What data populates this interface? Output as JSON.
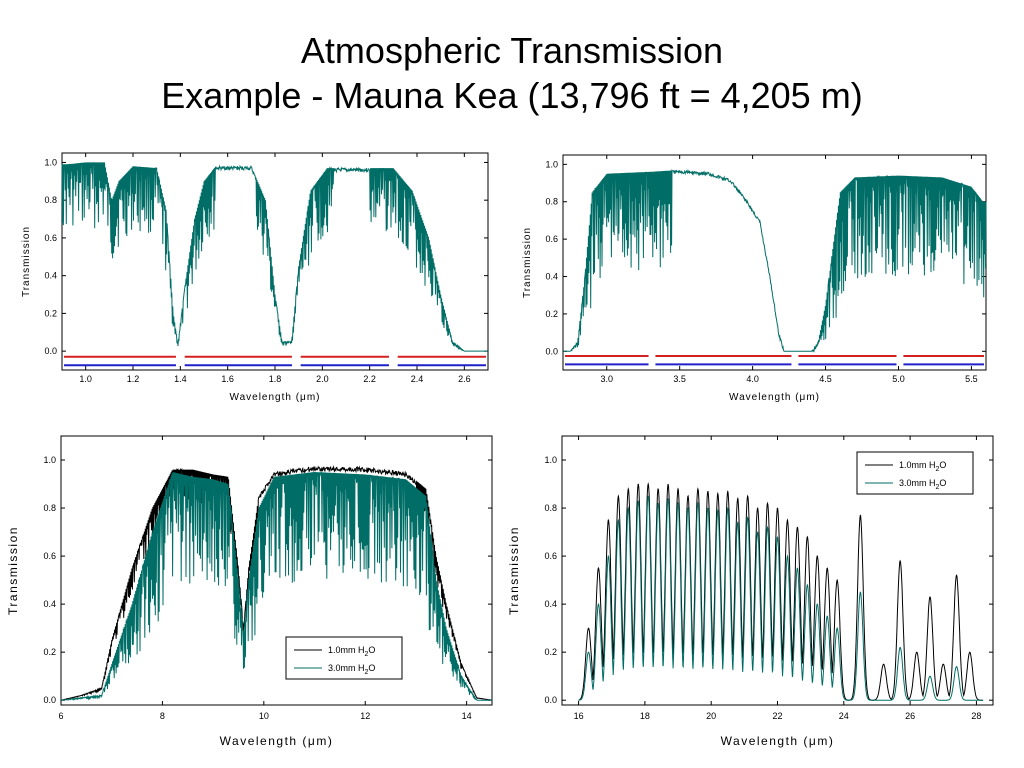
{
  "title_line1": "Atmospheric Transmission",
  "title_line2": "Example - Mauna Kea (13,796 ft = 4,205 m)",
  "colors": {
    "teal": "#006e66",
    "black": "#000000",
    "red": "#d42020",
    "blue": "#2020c8"
  },
  "chart_data": [
    {
      "id": "nir",
      "type": "line",
      "xlabel": "Wavelength (μm)",
      "ylabel": "Transmission",
      "xlim": [
        0.9,
        2.7
      ],
      "ylim": [
        -0.1,
        1.05
      ],
      "xticks": [
        1.0,
        1.2,
        1.4,
        1.6,
        1.8,
        2.0,
        2.2,
        2.4,
        2.6
      ],
      "xtick_labels": [
        "1.0",
        "1.2",
        "1.4",
        "1.6",
        "1.8",
        "2.0",
        "2.2",
        "2.4",
        "2.6"
      ],
      "yticks": [
        0.0,
        0.2,
        0.4,
        0.6,
        0.8,
        1.0
      ],
      "ytick_labels": [
        "0.0",
        "0.2",
        "0.4",
        "0.6",
        "0.8",
        "1.0"
      ],
      "grid": false,
      "series": [
        {
          "color": "teal",
          "envelope": [
            [
              0.92,
              0.99
            ],
            [
              1.0,
              1.0
            ],
            [
              1.08,
              1.0
            ],
            [
              1.11,
              0.8
            ],
            [
              1.14,
              0.9
            ],
            [
              1.2,
              0.98
            ],
            [
              1.3,
              0.97
            ],
            [
              1.34,
              0.75
            ],
            [
              1.37,
              0.2
            ],
            [
              1.39,
              0.04
            ],
            [
              1.42,
              0.35
            ],
            [
              1.46,
              0.7
            ],
            [
              1.5,
              0.9
            ],
            [
              1.55,
              0.98
            ],
            [
              1.7,
              0.98
            ],
            [
              1.76,
              0.8
            ],
            [
              1.8,
              0.3
            ],
            [
              1.83,
              0.05
            ],
            [
              1.87,
              0.05
            ],
            [
              1.9,
              0.45
            ],
            [
              1.95,
              0.85
            ],
            [
              2.02,
              0.97
            ],
            [
              2.3,
              0.97
            ],
            [
              2.38,
              0.85
            ],
            [
              2.45,
              0.6
            ],
            [
              2.5,
              0.3
            ],
            [
              2.55,
              0.05
            ],
            [
              2.6,
              0.0
            ],
            [
              2.67,
              0.0
            ]
          ],
          "noise": 0.35,
          "smooth_ranges": [
            [
              1.55,
              1.72
            ],
            [
              2.05,
              2.2
            ]
          ]
        }
      ],
      "bands": [
        {
          "color": "red",
          "y": -0.03,
          "segments": [
            [
              0.9,
              1.39
            ],
            [
              1.41,
              1.88
            ],
            [
              1.9,
              2.29
            ],
            [
              2.31,
              2.7
            ]
          ]
        },
        {
          "color": "blue",
          "y": -0.075,
          "segments": [
            [
              0.9,
              1.39
            ],
            [
              1.41,
              1.88
            ],
            [
              1.9,
              2.29
            ],
            [
              2.31,
              2.7
            ]
          ]
        }
      ]
    },
    {
      "id": "mir",
      "type": "line",
      "xlabel": "Wavelength (μm)",
      "ylabel": "Transmission",
      "xlim": [
        2.7,
        5.6
      ],
      "ylim": [
        -0.1,
        1.05
      ],
      "xticks": [
        3.0,
        3.5,
        4.0,
        4.5,
        5.0,
        5.5
      ],
      "xtick_labels": [
        "3.0",
        "3.5",
        "4.0",
        "4.5",
        "5.0",
        "5.5"
      ],
      "yticks": [
        0.0,
        0.2,
        0.4,
        0.6,
        0.8,
        1.0
      ],
      "ytick_labels": [
        "0.0",
        "0.2",
        "0.4",
        "0.6",
        "0.8",
        "1.0"
      ],
      "grid": false,
      "series": [
        {
          "color": "teal",
          "envelope": [
            [
              2.75,
              0.0
            ],
            [
              2.8,
              0.05
            ],
            [
              2.85,
              0.4
            ],
            [
              2.9,
              0.85
            ],
            [
              3.0,
              0.95
            ],
            [
              3.3,
              0.96
            ],
            [
              3.5,
              0.97
            ],
            [
              3.7,
              0.96
            ],
            [
              3.85,
              0.92
            ],
            [
              3.95,
              0.82
            ],
            [
              4.05,
              0.7
            ],
            [
              4.12,
              0.4
            ],
            [
              4.18,
              0.1
            ],
            [
              4.22,
              0.0
            ],
            [
              4.4,
              0.0
            ],
            [
              4.45,
              0.05
            ],
            [
              4.5,
              0.25
            ],
            [
              4.55,
              0.55
            ],
            [
              4.6,
              0.85
            ],
            [
              4.7,
              0.93
            ],
            [
              5.0,
              0.94
            ],
            [
              5.3,
              0.93
            ],
            [
              5.5,
              0.88
            ],
            [
              5.58,
              0.8
            ]
          ],
          "noise": 0.55,
          "smooth_ranges": [
            [
              3.45,
              4.2
            ],
            [
              4.2,
              4.45
            ]
          ]
        }
      ],
      "bands": [
        {
          "color": "red",
          "y": -0.025,
          "segments": [
            [
              2.7,
              3.3
            ],
            [
              3.32,
              4.28
            ],
            [
              4.3,
              5.0
            ],
            [
              5.02,
              5.6
            ]
          ]
        },
        {
          "color": "blue",
          "y": -0.07,
          "segments": [
            [
              2.7,
              3.3
            ],
            [
              3.32,
              4.28
            ],
            [
              4.3,
              5.0
            ],
            [
              5.02,
              5.6
            ]
          ]
        }
      ]
    },
    {
      "id": "n-band",
      "type": "line",
      "xlabel": "Wavelength (μm)",
      "ylabel": "Transmission",
      "xlim": [
        6,
        14.5
      ],
      "ylim": [
        -0.02,
        1.1
      ],
      "xticks": [
        6,
        8,
        10,
        12,
        14
      ],
      "xtick_labels": [
        "6",
        "8",
        "10",
        "12",
        "14"
      ],
      "yticks": [
        0.0,
        0.2,
        0.4,
        0.6,
        0.8,
        1.0
      ],
      "ytick_labels": [
        "0.0",
        "0.2",
        "0.4",
        "0.6",
        "0.8",
        "1.0"
      ],
      "grid": false,
      "legend": {
        "position": "bottom-right"
      },
      "series": [
        {
          "name": "1.0mm H2O",
          "color": "black",
          "envelope": [
            [
              6.0,
              0.0
            ],
            [
              6.4,
              0.02
            ],
            [
              6.8,
              0.05
            ],
            [
              7.0,
              0.25
            ],
            [
              7.4,
              0.55
            ],
            [
              7.8,
              0.8
            ],
            [
              8.2,
              0.96
            ],
            [
              8.6,
              0.96
            ],
            [
              9.0,
              0.94
            ],
            [
              9.3,
              0.93
            ],
            [
              9.5,
              0.55
            ],
            [
              9.6,
              0.3
            ],
            [
              9.7,
              0.55
            ],
            [
              9.9,
              0.85
            ],
            [
              10.2,
              0.95
            ],
            [
              11.0,
              0.975
            ],
            [
              12.0,
              0.97
            ],
            [
              12.8,
              0.95
            ],
            [
              13.2,
              0.88
            ],
            [
              13.4,
              0.6
            ],
            [
              13.6,
              0.4
            ],
            [
              13.9,
              0.15
            ],
            [
              14.2,
              0.01
            ],
            [
              14.5,
              0.0
            ]
          ],
          "noise": 0.15,
          "smooth_ranges": [
            [
              9.9,
              13.0
            ]
          ]
        },
        {
          "name": "3.0mm H2O",
          "color": "teal",
          "envelope": [
            [
              6.0,
              0.0
            ],
            [
              6.8,
              0.02
            ],
            [
              7.0,
              0.15
            ],
            [
              7.4,
              0.4
            ],
            [
              7.8,
              0.7
            ],
            [
              8.2,
              0.95
            ],
            [
              8.6,
              0.93
            ],
            [
              9.0,
              0.92
            ],
            [
              9.3,
              0.9
            ],
            [
              9.5,
              0.5
            ],
            [
              9.6,
              0.27
            ],
            [
              9.7,
              0.5
            ],
            [
              9.9,
              0.8
            ],
            [
              10.2,
              0.93
            ],
            [
              11.0,
              0.95
            ],
            [
              12.0,
              0.94
            ],
            [
              12.8,
              0.92
            ],
            [
              13.2,
              0.85
            ],
            [
              13.4,
              0.5
            ],
            [
              13.6,
              0.3
            ],
            [
              13.9,
              0.1
            ],
            [
              14.2,
              0.0
            ],
            [
              14.5,
              0.0
            ]
          ],
          "noise": 0.45,
          "smooth_ranges": []
        }
      ]
    },
    {
      "id": "q-band",
      "type": "line",
      "xlabel": "Wavelength (μm)",
      "ylabel": "Transmission",
      "xlim": [
        15.5,
        28.5
      ],
      "ylim": [
        -0.02,
        1.1
      ],
      "xticks": [
        16,
        18,
        20,
        22,
        24,
        26,
        28
      ],
      "xtick_labels": [
        "16",
        "18",
        "20",
        "22",
        "24",
        "26",
        "28"
      ],
      "yticks": [
        0.0,
        0.2,
        0.4,
        0.6,
        0.8,
        1.0
      ],
      "ytick_labels": [
        "0.0",
        "0.2",
        "0.4",
        "0.6",
        "0.8",
        "1.0"
      ],
      "grid": false,
      "legend": {
        "position": "top-right"
      },
      "series": [
        {
          "name": "1.0mm H2O",
          "color": "black",
          "peaks": [
            [
              16.3,
              0.3
            ],
            [
              16.6,
              0.55
            ],
            [
              16.9,
              0.75
            ],
            [
              17.2,
              0.85
            ],
            [
              17.5,
              0.88
            ],
            [
              17.8,
              0.9
            ],
            [
              18.1,
              0.9
            ],
            [
              18.4,
              0.88
            ],
            [
              18.7,
              0.9
            ],
            [
              19.0,
              0.88
            ],
            [
              19.3,
              0.85
            ],
            [
              19.6,
              0.88
            ],
            [
              19.9,
              0.87
            ],
            [
              20.2,
              0.86
            ],
            [
              20.5,
              0.87
            ],
            [
              20.8,
              0.84
            ],
            [
              21.1,
              0.85
            ],
            [
              21.4,
              0.8
            ],
            [
              21.7,
              0.82
            ],
            [
              22.0,
              0.8
            ],
            [
              22.3,
              0.75
            ],
            [
              22.6,
              0.72
            ],
            [
              22.9,
              0.68
            ],
            [
              23.2,
              0.6
            ],
            [
              23.5,
              0.55
            ],
            [
              23.8,
              0.5
            ],
            [
              24.5,
              0.77
            ],
            [
              25.2,
              0.15
            ],
            [
              25.7,
              0.58
            ],
            [
              26.2,
              0.2
            ],
            [
              26.6,
              0.43
            ],
            [
              27.0,
              0.15
            ],
            [
              27.4,
              0.52
            ],
            [
              27.8,
              0.2
            ]
          ],
          "start": 16.0,
          "end": 28.2,
          "widths": 0.12
        },
        {
          "name": "3.0mm H2O",
          "color": "teal",
          "peaks": [
            [
              16.3,
              0.2
            ],
            [
              16.6,
              0.4
            ],
            [
              16.9,
              0.6
            ],
            [
              17.2,
              0.75
            ],
            [
              17.5,
              0.8
            ],
            [
              17.8,
              0.83
            ],
            [
              18.1,
              0.85
            ],
            [
              18.4,
              0.82
            ],
            [
              18.7,
              0.84
            ],
            [
              19.0,
              0.82
            ],
            [
              19.3,
              0.8
            ],
            [
              19.6,
              0.82
            ],
            [
              19.9,
              0.8
            ],
            [
              20.2,
              0.79
            ],
            [
              20.5,
              0.8
            ],
            [
              20.8,
              0.74
            ],
            [
              21.1,
              0.76
            ],
            [
              21.4,
              0.7
            ],
            [
              21.7,
              0.72
            ],
            [
              22.0,
              0.68
            ],
            [
              22.3,
              0.6
            ],
            [
              22.6,
              0.55
            ],
            [
              22.9,
              0.48
            ],
            [
              23.2,
              0.4
            ],
            [
              23.5,
              0.35
            ],
            [
              23.8,
              0.3
            ],
            [
              24.5,
              0.45
            ],
            [
              25.7,
              0.22
            ],
            [
              26.6,
              0.1
            ],
            [
              27.4,
              0.14
            ]
          ],
          "start": 16.0,
          "end": 28.2,
          "widths": 0.11
        }
      ]
    }
  ]
}
